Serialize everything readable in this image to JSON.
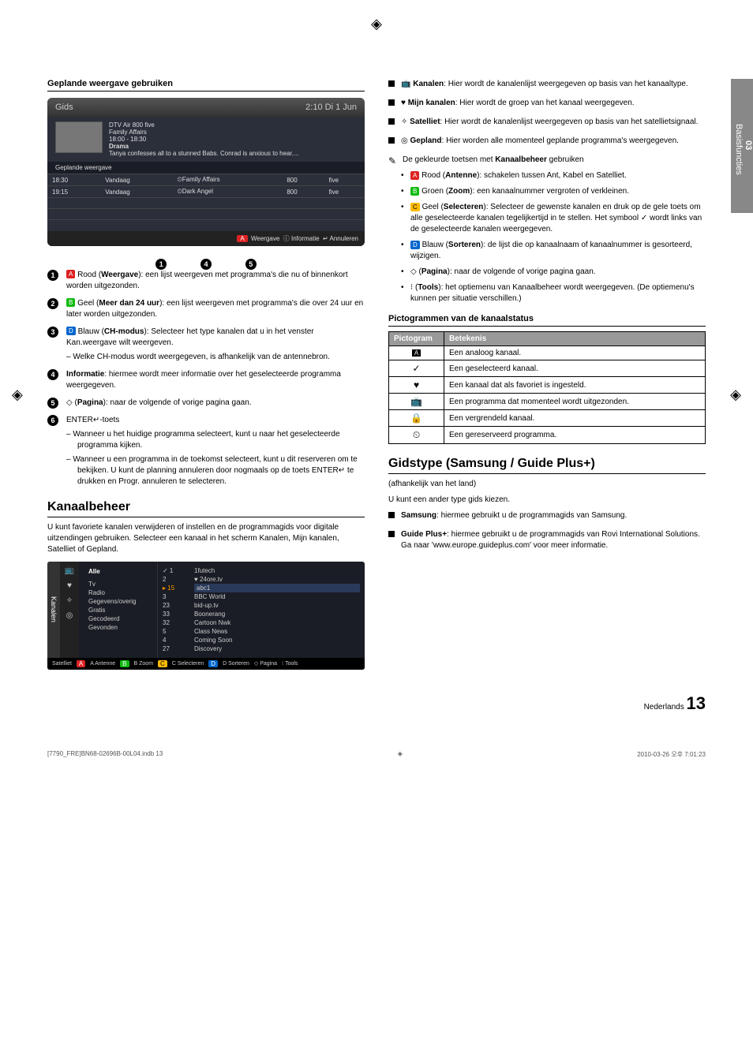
{
  "regmarks": "◈",
  "sideTab": {
    "num": "03",
    "label": "Basisfuncties"
  },
  "left": {
    "subTitle": "Geplande weergave gebruiken",
    "gids": {
      "title": "Gids",
      "clock": "2:10 Di 1 Jun",
      "ch": "DTV Air 800 five",
      "prog": "Family Affairs",
      "time": "18:00 - 18:30",
      "genre": "Drama",
      "desc": "Tanya confesses all to a stunned Babs. Conrad is anxious to hear....",
      "subheader": "Geplande weergave",
      "rows": [
        {
          "t": "18:30",
          "d": "Vandaag",
          "c": "⏲Family Affairs",
          "n": "800",
          "s": "five"
        },
        {
          "t": "19:15",
          "d": "Vandaag",
          "c": "⏲Dark Angel",
          "n": "800",
          "s": "five"
        }
      ],
      "footer": {
        "a": "A",
        "weergave": "Weergave",
        "info": "Informatie",
        "annul": "Annuleren"
      }
    },
    "callouts": [
      "1",
      "4",
      "5"
    ],
    "items": [
      {
        "n": "1",
        "btn": "A",
        "btnClass": "colorbtn-a",
        "lead": "Rood (",
        "bold": "Weergave",
        "rest": "): een lijst weergeven met programma's die nu of binnenkort worden uitgezonden."
      },
      {
        "n": "2",
        "btn": "B",
        "btnClass": "colorbtn-b",
        "lead": "Geel (",
        "bold": "Meer dan 24 uur",
        "rest": "): een lijst weergeven met programma's die over 24 uur en later worden uitgezonden."
      },
      {
        "n": "3",
        "btn": "D",
        "btnClass": "colorbtn-d",
        "lead": "Blauw (",
        "bold": "CH-modus",
        "rest": "): Selecteer het type kanalen dat u in het venster Kan.weergave wilt weergeven.",
        "sub": [
          "Welke CH-modus wordt weergegeven, is afhankelijk van de antennebron."
        ]
      },
      {
        "n": "4",
        "plain": true,
        "boldLead": "Informatie",
        "rest": ": hiermee wordt meer informatie over het geselecteerde programma weergegeven."
      },
      {
        "n": "5",
        "plainIcon": "◇",
        "lead": " (",
        "bold": "Pagina",
        "rest": "): naar de volgende of vorige pagina gaan."
      },
      {
        "n": "6",
        "plain": true,
        "lead": "ENTER",
        "icon": "↵",
        "rest": "-toets",
        "sub": [
          "Wanneer u het huidige programma selecteert, kunt u naar het geselecteerde programma kijken.",
          "Wanneer u een programma in de toekomst selecteert, kunt u dit reserveren om te bekijken. U kunt de planning annuleren door nogmaals op de toets ENTER↵ te drukken en Progr. annuleren te selecteren."
        ]
      }
    ],
    "h2": "Kanaalbeheer",
    "p1": "U kunt favoriete kanalen verwijderen of instellen en de programmagids voor digitale uitzendingen gebruiken. Selecteer een kanaal in het scherm Kanalen, Mijn kanalen, Satelliet of Gepland.",
    "kan": {
      "vtab": "Kanalen",
      "icons": [
        "📺",
        "♥",
        "✧",
        "◎"
      ],
      "c1_header": "Alle",
      "c1": [
        "Tv",
        "Radio",
        "Gegevens/overig",
        "Gratis",
        "Gecodeerd",
        "Gevonden"
      ],
      "c2_top": [
        "✓ 1",
        "2"
      ],
      "c2_mid": "▸ 15",
      "c2_rest": [
        "3",
        "23",
        "33",
        "32",
        "5",
        "4",
        "27"
      ],
      "c3_top": [
        "1futech",
        "♥ 24ore.tv"
      ],
      "c3_mid": "abc1",
      "c3_rest": [
        "BBC World",
        "bid-up.tv",
        "Boonerang",
        "Cartoon Nwk",
        "Class News",
        "Coming Soon",
        "Discovery"
      ],
      "footer": [
        "Satelliet",
        "A Antenne",
        "B Zoom",
        "C Selecteren",
        "D Sorteren",
        "◇ Pagina",
        "⁝ Tools"
      ]
    }
  },
  "right": {
    "sq": [
      {
        "icon": "📺",
        "bold": "Kanalen",
        "rest": ": Hier wordt de kanalenlijst weergegeven op basis van het kanaaltype."
      },
      {
        "icon": "♥",
        "bold": "Mijn kanalen",
        "rest": ": Hier wordt de groep van het kanaal weergegeven."
      },
      {
        "icon": "✧",
        "bold": "Satelliet",
        "rest": ": Hier wordt de kanalenlijst weergegeven op basis van het satellietsignaal."
      },
      {
        "icon": "◎",
        "bold": "Gepland",
        "rest": ": Hier worden alle momenteel geplande programma's weergegeven."
      }
    ],
    "note": "De gekleurde toetsen met Kanaalbeheer gebruiken",
    "dots": [
      {
        "btn": "A",
        "btnClass": "colorbtn-a",
        "text1": "Rood (",
        "b": "Antenne",
        "text2": "): schakelen tussen Ant, Kabel en Satelliet."
      },
      {
        "btn": "B",
        "btnClass": "colorbtn-b",
        "text1": "Groen (",
        "b": "Zoom",
        "text2": "): een kanaalnummer vergroten of verkleinen."
      },
      {
        "btn": "C",
        "btnClass": "colorbtn-c",
        "text1": "Geel (",
        "b": "Selecteren",
        "text2": "): Selecteer de gewenste kanalen en druk op de gele toets om alle geselecteerde kanalen tegelijkertijd in te stellen. Het symbool ✓ wordt links van de geselecteerde kanalen weergegeven."
      },
      {
        "btn": "D",
        "btnClass": "colorbtn-d",
        "text1": "Blauw (",
        "b": "Sorteren",
        "text2": "): de lijst die op kanaalnaam of kanaalnummer is gesorteerd, wijzigen."
      },
      {
        "plainIcon": "◇",
        "text1": " (",
        "b": "Pagina",
        "text2": "): naar de volgende of vorige pagina gaan."
      },
      {
        "plainIcon": "⁝",
        "text1": " (",
        "b": "Tools",
        "text2": "): het optiemenu van Kanaalbeheer wordt weergegeven. (De optiemenu's kunnen per situatie verschillen.)"
      }
    ],
    "pictTitle": "Pictogrammen van de kanaalstatus",
    "pictHead": [
      "Pictogram",
      "Betekenis"
    ],
    "pictRows": [
      {
        "i": "A",
        "iClass": "ic-a",
        "t": "Een analoog kanaal."
      },
      {
        "i": "✓",
        "t": "Een geselecteerd kanaal."
      },
      {
        "i": "♥",
        "t": "Een kanaal dat als favoriet is ingesteld."
      },
      {
        "i": "📺",
        "t": "Een programma dat momenteel wordt uitgezonden."
      },
      {
        "i": "🔒",
        "t": "Een vergrendeld kanaal."
      },
      {
        "i": "⏲",
        "t": "Een gereserveerd programma."
      }
    ],
    "h2": "Gidstype (Samsung / Guide Plus+)",
    "sub": "(afhankelijk van het land)",
    "p": "U kunt een ander type gids kiezen.",
    "sq2": [
      {
        "bold": "Samsung",
        "rest": ": hiermee gebruikt u de programmagids van Samsung."
      },
      {
        "bold": "Guide Plus+",
        "rest": ": hiermee gebruikt u de programmagids van Rovi International Solutions. Ga naar 'www.europe.guideplus.com' voor meer informatie."
      }
    ]
  },
  "pageNum": {
    "label": "Nederlands",
    "n": "13"
  },
  "footer": {
    "left": "[7790_FRE]BN68-02696B-00L04.indb   13",
    "right": "2010-03-26   오후 7:01:23"
  }
}
